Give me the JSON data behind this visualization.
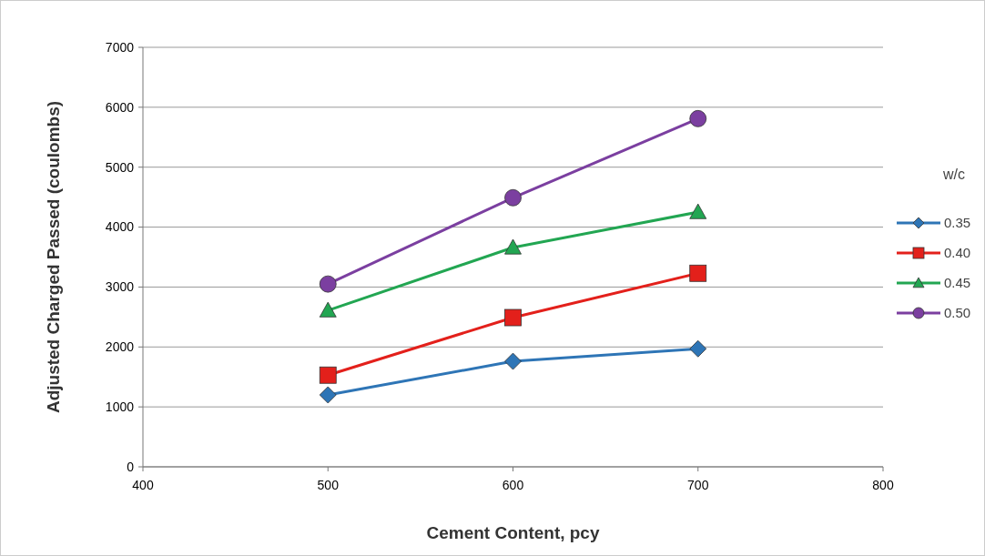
{
  "chart_data": {
    "type": "line",
    "xlabel": "Cement Content, pcy",
    "ylabel": "Adjusted Charged Passed (coulombs)",
    "legend_title": "w/c",
    "x": [
      500,
      600,
      700
    ],
    "xlim": [
      400,
      800
    ],
    "xticks": [
      400,
      500,
      600,
      700,
      800
    ],
    "ylim": [
      0,
      7000
    ],
    "yticks": [
      0,
      1000,
      2000,
      3000,
      4000,
      5000,
      6000,
      7000
    ],
    "grid": "y",
    "legend": "right",
    "line_style": "solid",
    "series": [
      {
        "name": "0.35",
        "color": "#2e75b6",
        "marker": "diamond",
        "values": [
          1200,
          1760,
          1970
        ]
      },
      {
        "name": "0.40",
        "color": "#e3201b",
        "marker": "square",
        "values": [
          1530,
          2490,
          3230
        ]
      },
      {
        "name": "0.45",
        "color": "#22a652",
        "marker": "triangle",
        "values": [
          2610,
          3660,
          4250
        ]
      },
      {
        "name": "0.50",
        "color": "#7b3fa0",
        "marker": "circle",
        "values": [
          3050,
          4490,
          5810
        ]
      }
    ]
  }
}
